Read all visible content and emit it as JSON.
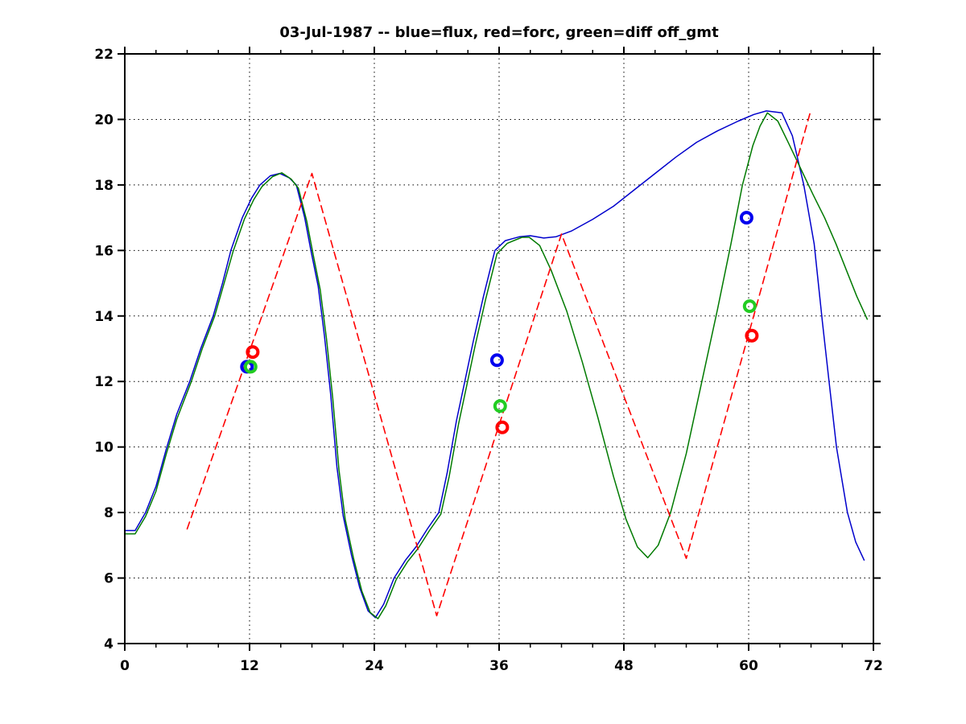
{
  "figure": {
    "title": "03-Jul-1987 -- blue=flux, red=forc, green=diff off_gmt",
    "background": "#ffffff"
  },
  "chart_data": {
    "type": "line",
    "title": "03-Jul-1987 -- blue=flux, red=forc, green=diff off_gmt",
    "xlabel": "",
    "ylabel": "",
    "xlim": [
      0,
      72
    ],
    "ylim": [
      4,
      22
    ],
    "xticks": [
      0,
      12,
      24,
      36,
      48,
      60,
      72
    ],
    "xminor_step": 3,
    "yticks": [
      4,
      6,
      8,
      10,
      12,
      14,
      16,
      18,
      20,
      22
    ],
    "grid": "dotted",
    "grid_color": "#000000",
    "legend_position": "in-title",
    "legend_entries": [
      {
        "label": "blue=flux",
        "color": "#0000cc"
      },
      {
        "label": "red=forc",
        "color": "#ff0000"
      },
      {
        "label": "green=diff",
        "color": "#007a00"
      }
    ],
    "series": [
      {
        "name": "flux",
        "color": "#0000cc",
        "style": "solid",
        "width": 1.5,
        "points": [
          [
            0,
            7.45
          ],
          [
            1,
            7.45
          ],
          [
            2,
            8
          ],
          [
            3,
            8.8
          ],
          [
            4,
            9.95
          ],
          [
            5,
            11
          ],
          [
            6.25,
            12
          ],
          [
            7.3,
            13
          ],
          [
            8.5,
            14
          ],
          [
            9.4,
            15
          ],
          [
            10.2,
            16
          ],
          [
            11.3,
            17
          ],
          [
            12.2,
            17.6
          ],
          [
            13,
            18
          ],
          [
            14,
            18.28
          ],
          [
            14.9,
            18.35
          ],
          [
            15.8,
            18.22
          ],
          [
            16.5,
            18
          ],
          [
            17.3,
            17
          ],
          [
            17.9,
            16
          ],
          [
            18.6,
            14.9
          ],
          [
            19.2,
            13.4
          ],
          [
            19.8,
            11.6
          ],
          [
            20.4,
            9.4
          ],
          [
            21,
            7.9
          ],
          [
            21.8,
            6.7
          ],
          [
            22.6,
            5.7
          ],
          [
            23.4,
            5
          ],
          [
            24.1,
            4.79
          ],
          [
            24.9,
            5.2
          ],
          [
            25.9,
            6
          ],
          [
            27,
            6.55
          ],
          [
            28,
            6.95
          ],
          [
            29.1,
            7.5
          ],
          [
            30.2,
            8
          ],
          [
            31,
            9.2
          ],
          [
            31.9,
            10.8
          ],
          [
            32.7,
            12
          ],
          [
            33.5,
            13.2
          ],
          [
            34.5,
            14.6
          ],
          [
            35.6,
            16
          ],
          [
            36.6,
            16.3
          ],
          [
            38,
            16.42
          ],
          [
            39,
            16.45
          ],
          [
            40.3,
            16.38
          ],
          [
            41.5,
            16.42
          ],
          [
            43,
            16.6
          ],
          [
            45,
            16.95
          ],
          [
            47,
            17.35
          ],
          [
            49,
            17.85
          ],
          [
            51,
            18.35
          ],
          [
            53,
            18.85
          ],
          [
            55,
            19.3
          ],
          [
            57,
            19.65
          ],
          [
            59,
            19.95
          ],
          [
            60.5,
            20.15
          ],
          [
            61.7,
            20.26
          ],
          [
            63.2,
            20.2
          ],
          [
            64.2,
            19.5
          ],
          [
            65.3,
            18
          ],
          [
            66.3,
            16.2
          ],
          [
            67.1,
            13.8
          ],
          [
            67.8,
            11.8
          ],
          [
            68.45,
            10
          ],
          [
            69.5,
            8
          ],
          [
            70.3,
            7.1
          ],
          [
            71.1,
            6.55
          ]
        ]
      },
      {
        "name": "diff",
        "color": "#007a00",
        "style": "solid",
        "width": 1.5,
        "points": [
          [
            0,
            7.35
          ],
          [
            1,
            7.35
          ],
          [
            2,
            7.88
          ],
          [
            3,
            8.65
          ],
          [
            4,
            9.8
          ],
          [
            5,
            10.85
          ],
          [
            6.4,
            12
          ],
          [
            7.45,
            13
          ],
          [
            8.65,
            14
          ],
          [
            9.55,
            15
          ],
          [
            10.4,
            15.95
          ],
          [
            11.5,
            16.95
          ],
          [
            12.4,
            17.55
          ],
          [
            13.2,
            17.95
          ],
          [
            14.2,
            18.25
          ],
          [
            15.1,
            18.37
          ],
          [
            16,
            18.18
          ],
          [
            16.7,
            17.9
          ],
          [
            17.5,
            16.9
          ],
          [
            18.1,
            15.9
          ],
          [
            18.8,
            14.8
          ],
          [
            19.4,
            13.3
          ],
          [
            20,
            11.5
          ],
          [
            20.6,
            9.3
          ],
          [
            21.2,
            7.8
          ],
          [
            22,
            6.6
          ],
          [
            22.8,
            5.6
          ],
          [
            23.6,
            4.95
          ],
          [
            24.35,
            4.76
          ],
          [
            25.1,
            5.15
          ],
          [
            26.1,
            5.95
          ],
          [
            27.2,
            6.5
          ],
          [
            28.2,
            6.9
          ],
          [
            29.3,
            7.45
          ],
          [
            30.4,
            7.95
          ],
          [
            31.2,
            9.1
          ],
          [
            32.1,
            10.7
          ],
          [
            32.9,
            11.9
          ],
          [
            33.7,
            13.1
          ],
          [
            34.7,
            14.5
          ],
          [
            35.8,
            15.9
          ],
          [
            36.8,
            16.22
          ],
          [
            38.2,
            16.4
          ],
          [
            38.9,
            16.4
          ],
          [
            39.9,
            16.15
          ],
          [
            41,
            15.4
          ],
          [
            42.5,
            14.15
          ],
          [
            44,
            12.6
          ],
          [
            45.5,
            10.9
          ],
          [
            47,
            9.1
          ],
          [
            48.2,
            7.8
          ],
          [
            49.3,
            6.95
          ],
          [
            50.3,
            6.62
          ],
          [
            51.3,
            7
          ],
          [
            52.5,
            8
          ],
          [
            54,
            9.8
          ],
          [
            55.5,
            12
          ],
          [
            57,
            14.2
          ],
          [
            58.3,
            16.2
          ],
          [
            59.4,
            18
          ],
          [
            60.4,
            19.2
          ],
          [
            61.1,
            19.8
          ],
          [
            61.8,
            20.2
          ],
          [
            62.8,
            19.95
          ],
          [
            63.8,
            19.3
          ],
          [
            65,
            18.5
          ],
          [
            66.2,
            17.7
          ],
          [
            67.3,
            17
          ],
          [
            68.4,
            16.2
          ],
          [
            69.4,
            15.4
          ],
          [
            70.4,
            14.6
          ],
          [
            71.4,
            13.9
          ]
        ]
      },
      {
        "name": "forc",
        "color": "#ff0000",
        "style": "dashed",
        "width": 1.6,
        "points": [
          [
            6,
            7.5
          ],
          [
            18,
            18.35
          ],
          [
            30,
            4.85
          ],
          [
            42,
            16.5
          ],
          [
            54,
            6.6
          ],
          [
            66,
            20.3
          ]
        ]
      }
    ],
    "markers": [
      {
        "series": "flux",
        "shape": "circle",
        "color": "#0000ee",
        "points": [
          [
            11.75,
            12.45
          ],
          [
            35.8,
            12.65
          ],
          [
            59.8,
            17.0
          ]
        ]
      },
      {
        "series": "diff",
        "shape": "circle",
        "color": "#22cc22",
        "points": [
          [
            12.1,
            12.45
          ],
          [
            36.1,
            11.25
          ],
          [
            60.1,
            14.3
          ]
        ]
      },
      {
        "series": "forc",
        "shape": "circle",
        "color": "#ff0000",
        "points": [
          [
            12.3,
            12.9
          ],
          [
            36.3,
            10.6
          ],
          [
            60.3,
            13.4
          ]
        ]
      }
    ]
  }
}
